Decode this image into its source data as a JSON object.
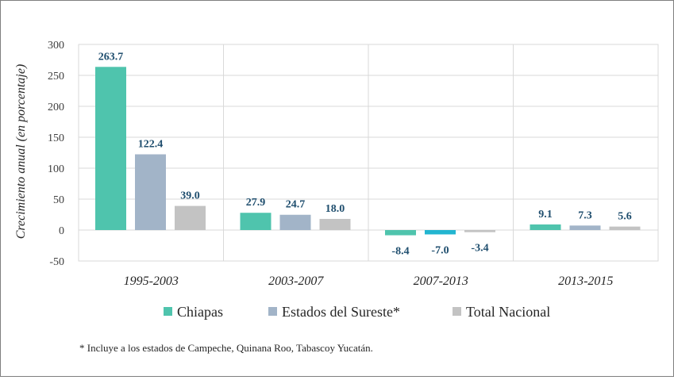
{
  "chart_data": {
    "type": "bar",
    "ylabel": "Crecimiento anual (en porcentaje)",
    "xlabel": "",
    "ylim": [
      -50,
      300
    ],
    "yticks": [
      300,
      250,
      200,
      150,
      100,
      50,
      0,
      -50
    ],
    "categories": [
      "1995-2003",
      "2003-2007",
      "2007-2013",
      "2013-2015"
    ],
    "series": [
      {
        "name": "Chiapas",
        "color": "#4fc4ad",
        "values": [
          263.7,
          27.9,
          -8.4,
          9.1
        ]
      },
      {
        "name": "Estados del Sureste*",
        "color": "#a2b4c8",
        "values": [
          122.4,
          24.7,
          -7.0,
          7.3
        ]
      },
      {
        "name": "Total Nacional",
        "color": "#c3c3c3",
        "values": [
          39.0,
          18.0,
          -3.4,
          5.6
        ]
      }
    ],
    "data_labels": [
      [
        "263.7",
        "122.4",
        "39.0"
      ],
      [
        "27.9",
        "24.7",
        "18.0"
      ],
      [
        "-8.4",
        "-7.0",
        "-3.4"
      ],
      [
        "9.1",
        "7.3",
        "5.6"
      ]
    ],
    "footnote": "* Incluye a los estados de Campeche, Quinana Roo, Tabascoy Yucatán.",
    "grid": true,
    "legend": "bottom"
  }
}
